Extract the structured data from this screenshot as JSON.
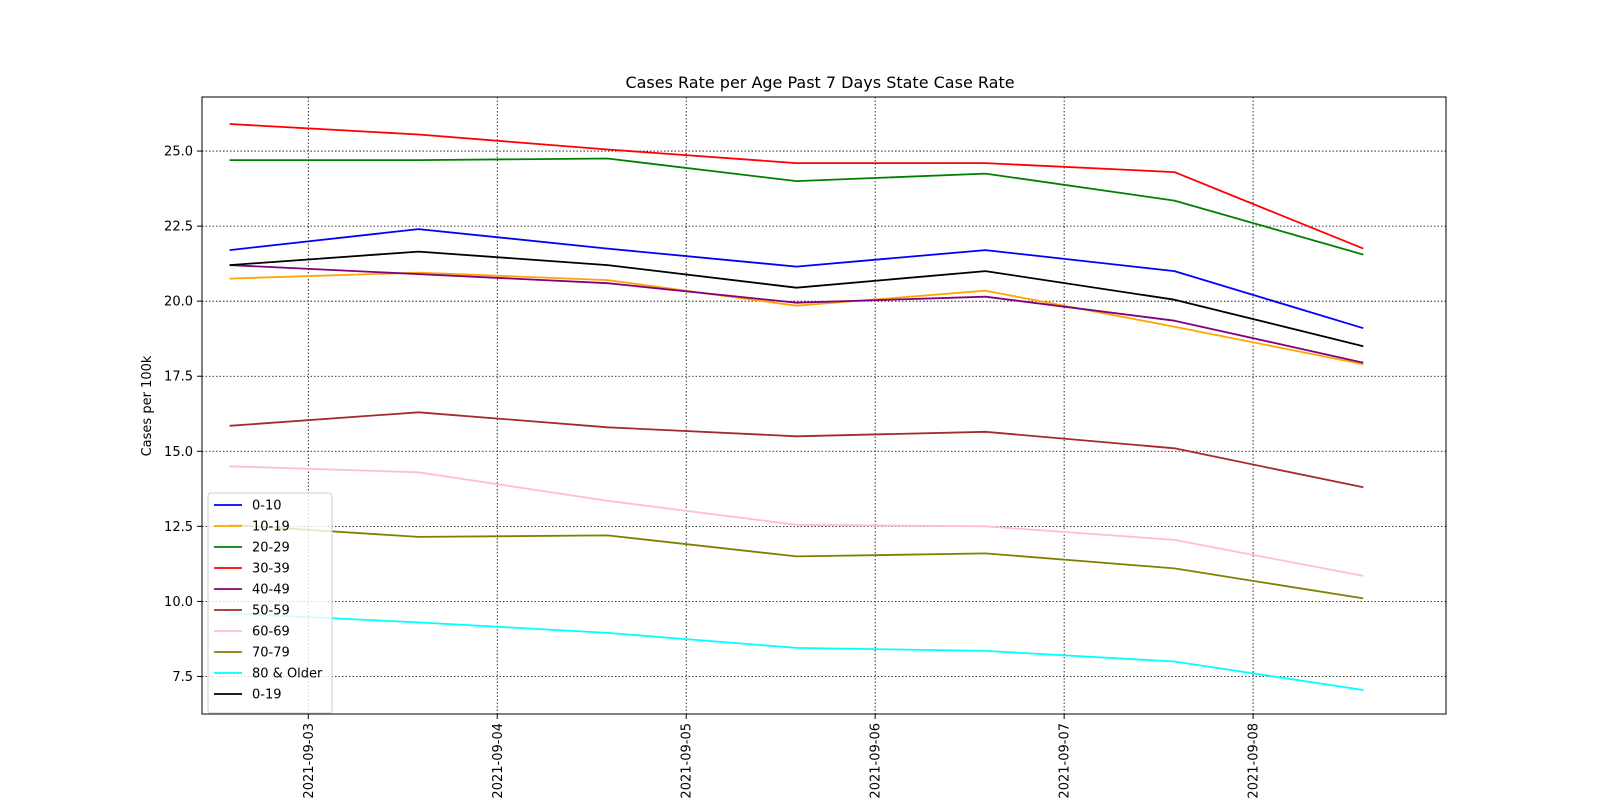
{
  "chart_data": {
    "type": "line",
    "title": "Cases Rate per Age Past 7 Days State Case Rate",
    "xlabel": "",
    "ylabel": "Cases per 100k",
    "x": [
      "2021-09-02 14:00",
      "2021-09-03 14:00",
      "2021-09-04 14:00",
      "2021-09-05 14:00",
      "2021-09-06 14:00",
      "2021-09-07 14:00",
      "2021-09-08 14:00"
    ],
    "xlim": [
      "2021-09-02 10:30",
      "2021-09-09 00:30"
    ],
    "xticks": [
      "2021-09-03",
      "2021-09-04",
      "2021-09-05",
      "2021-09-06",
      "2021-09-07",
      "2021-09-08"
    ],
    "ylim": [
      6.25,
      26.8
    ],
    "yticks": [
      "7.5",
      "10.0",
      "12.5",
      "15.0",
      "17.5",
      "20.0",
      "22.5",
      "25.0"
    ],
    "grid": true,
    "legend_position": "lower-left",
    "series": [
      {
        "name": "0-10",
        "color": "#0000ff",
        "values": [
          21.7,
          22.4,
          21.75,
          21.15,
          21.7,
          21.0,
          19.1
        ]
      },
      {
        "name": "10-19",
        "color": "#ffa500",
        "values": [
          20.75,
          20.95,
          20.7,
          19.85,
          20.35,
          19.15,
          17.9
        ]
      },
      {
        "name": "20-29",
        "color": "#008000",
        "values": [
          24.7,
          24.7,
          24.75,
          24.0,
          24.25,
          23.35,
          21.55
        ]
      },
      {
        "name": "30-39",
        "color": "#ff0000",
        "values": [
          25.9,
          25.55,
          25.05,
          24.6,
          24.6,
          24.3,
          21.75
        ]
      },
      {
        "name": "40-49",
        "color": "#800080",
        "values": [
          21.2,
          20.9,
          20.6,
          19.95,
          20.15,
          19.35,
          17.95
        ]
      },
      {
        "name": "50-59",
        "color": "#a52a2a",
        "values": [
          15.85,
          16.3,
          15.8,
          15.5,
          15.65,
          15.1,
          13.8
        ]
      },
      {
        "name": "60-69",
        "color": "#ffc0cb",
        "values": [
          14.5,
          14.3,
          13.35,
          12.55,
          12.5,
          12.05,
          10.85
        ]
      },
      {
        "name": "70-79",
        "color": "#808000",
        "values": [
          12.55,
          12.15,
          12.2,
          11.5,
          11.6,
          11.1,
          10.1
        ]
      },
      {
        "name": "80 & Older",
        "color": "#00ffff",
        "values": [
          9.6,
          9.3,
          8.95,
          8.45,
          8.35,
          8.0,
          7.05
        ]
      },
      {
        "name": "0-19",
        "color": "#000000",
        "values": [
          21.2,
          21.65,
          21.2,
          20.45,
          21.0,
          20.05,
          18.5
        ]
      }
    ]
  }
}
